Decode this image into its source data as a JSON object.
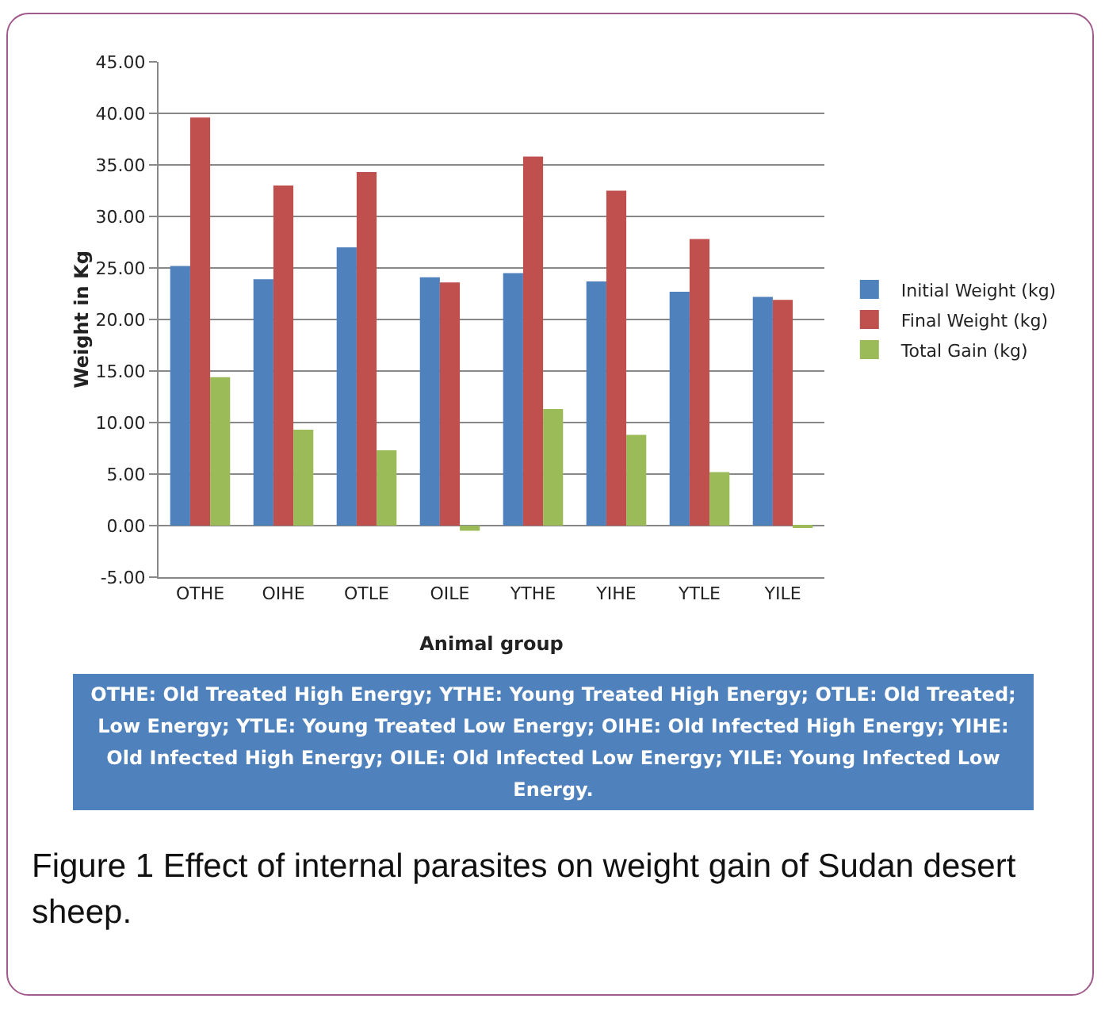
{
  "chart_data": {
    "type": "bar",
    "xlabel": "Animal group",
    "ylabel": "Weight in Kg",
    "categories": [
      "OTHE",
      "OIHE",
      "OTLE",
      "OILE",
      "YTHE",
      "YIHE",
      "YTLE",
      "YILE"
    ],
    "series": [
      {
        "name": "Initial Weight (kg)",
        "color": "#4f81bd",
        "values": [
          25.2,
          23.9,
          27.0,
          24.1,
          24.5,
          23.7,
          22.7,
          22.2
        ]
      },
      {
        "name": "Final Weight (kg)",
        "color": "#c0504d",
        "values": [
          39.6,
          33.0,
          34.3,
          23.6,
          35.8,
          32.5,
          27.8,
          21.9
        ]
      },
      {
        "name": "Total Gain (kg)",
        "color": "#9bbb59",
        "values": [
          14.4,
          9.3,
          7.3,
          -0.5,
          11.3,
          8.8,
          5.2,
          -0.2
        ]
      }
    ],
    "ylim": [
      -5,
      45
    ],
    "yticks": [
      {
        "value": -5,
        "label": "-5.00"
      },
      {
        "value": 0,
        "label": "0.00"
      },
      {
        "value": 5,
        "label": "5.00"
      },
      {
        "value": 10,
        "label": "10.00"
      },
      {
        "value": 15,
        "label": "15.00"
      },
      {
        "value": 20,
        "label": "20.00"
      },
      {
        "value": 25,
        "label": "25.00"
      },
      {
        "value": 30,
        "label": "30.00"
      },
      {
        "value": 35,
        "label": "35.00"
      },
      {
        "value": 40,
        "label": "40.00"
      },
      {
        "value": 45,
        "label": "45.00"
      }
    ],
    "grid": "y",
    "legend": "right",
    "annotations": [
      "OTHE: Old Treated High Energy; YTHE: Young Treated High Energy; OTLE: Old Treated; Low Energy; YTLE: Young Treated Low Energy; OIHE:  Old Infected High Energy; YIHE: Old Infected High Energy; OILE:  Old Infected Low Energy; YILE:  Young Infected Low Energy.",
      "Figure 1 Effect of internal parasites on weight gain of Sudan desert sheep."
    ]
  }
}
